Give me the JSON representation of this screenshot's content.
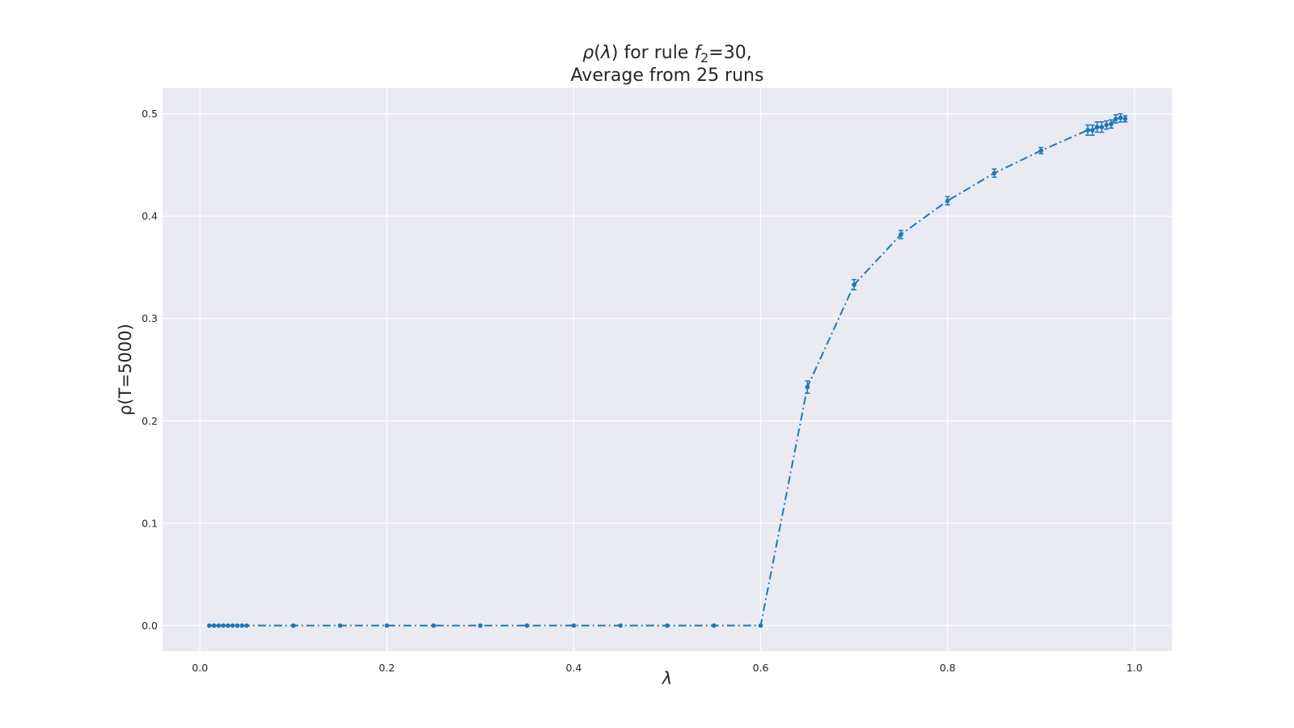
{
  "chart_data": {
    "type": "line",
    "title_line1_parts": {
      "rho": "ρ",
      "open": "(",
      "lambda": "λ",
      "close": ") for rule ",
      "f": "f",
      "sub": "2",
      "rest": "=30,"
    },
    "title_line2": "Average from 25 runs",
    "xlabel": "λ",
    "ylabel": "ρ(T=5000)",
    "xlim": [
      -0.04,
      1.04
    ],
    "ylim": [
      -0.025,
      0.525
    ],
    "xticks": [
      "0.0",
      "0.2",
      "0.4",
      "0.6",
      "0.8",
      "1.0"
    ],
    "yticks": [
      "0.0",
      "0.1",
      "0.2",
      "0.3",
      "0.4",
      "0.5"
    ],
    "grid": true,
    "style": {
      "background": "#e9eaf2",
      "line_color": "#1f77b4",
      "linestyle": "dashdot",
      "marker": "dot"
    },
    "series": [
      {
        "x": [
          0.01,
          0.015,
          0.02,
          0.025,
          0.03,
          0.035,
          0.04,
          0.045,
          0.05,
          0.1,
          0.15,
          0.2,
          0.25,
          0.3,
          0.35,
          0.4,
          0.45,
          0.5,
          0.55,
          0.6,
          0.65,
          0.7,
          0.75,
          0.8,
          0.85,
          0.9,
          0.95,
          0.955,
          0.96,
          0.965,
          0.97,
          0.975,
          0.98,
          0.985,
          0.99
        ],
        "y": [
          0,
          0,
          0,
          0,
          0,
          0,
          0,
          0,
          0,
          0,
          0,
          0,
          0,
          0,
          0,
          0,
          0,
          0,
          0,
          0,
          0.233,
          0.333,
          0.382,
          0.415,
          0.442,
          0.464,
          0.484,
          0.484,
          0.487,
          0.487,
          0.489,
          0.49,
          0.495,
          0.496,
          0.495
        ],
        "err": [
          0,
          0,
          0,
          0,
          0,
          0,
          0,
          0,
          0,
          0,
          0,
          0,
          0,
          0,
          0,
          0,
          0,
          0,
          0,
          0,
          0.006,
          0.005,
          0.004,
          0.004,
          0.004,
          0.003,
          0.005,
          0.005,
          0.005,
          0.005,
          0.004,
          0.004,
          0.004,
          0.004,
          0.003
        ]
      }
    ]
  }
}
